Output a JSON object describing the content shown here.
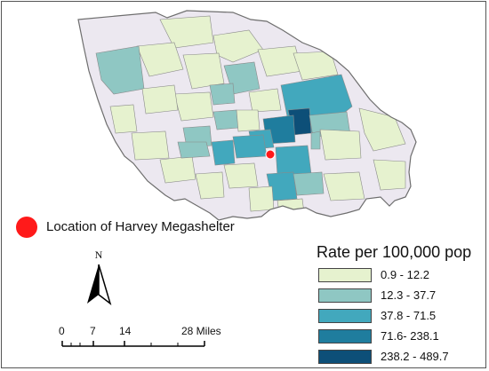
{
  "legend": {
    "title": "Rate per 100,000 pop",
    "classes": [
      {
        "label": "0.9 - 12.2",
        "color": "#e6f2cf"
      },
      {
        "label": "12.3 - 37.7",
        "color": "#8fc7c3"
      },
      {
        "label": "37.8 - 71.5",
        "color": "#42a8bd"
      },
      {
        "label": "71.6- 238.1",
        "color": "#1f7d9e"
      },
      {
        "label": "238.2 - 489.7",
        "color": "#0d4f78"
      }
    ],
    "no_data_color": "#ece8f0"
  },
  "shelter": {
    "label": "Location of Harvey Megashelter",
    "color": "#ff1a1a"
  },
  "north_arrow": {
    "label": "N"
  },
  "scale_bar": {
    "ticks": [
      "0",
      "7",
      "14",
      "28 Miles"
    ]
  }
}
